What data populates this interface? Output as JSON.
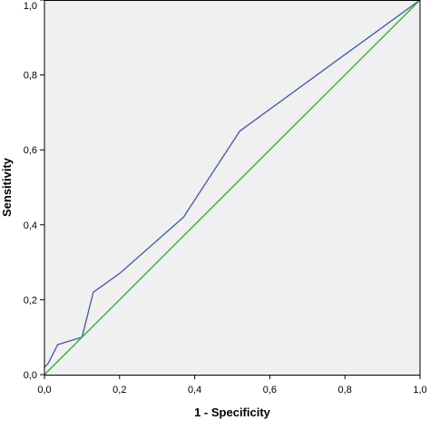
{
  "chart_data": {
    "type": "line",
    "xlabel": "1 - Specificity",
    "ylabel": "Sensitivity",
    "xlim": [
      0,
      1
    ],
    "ylim": [
      0,
      1
    ],
    "x_ticks": [
      "0,0",
      "0,2",
      "0,4",
      "0,6",
      "0,8",
      "1,0"
    ],
    "y_ticks": [
      "0,0",
      "0,2",
      "0,4",
      "0,6",
      "0,8",
      "1,0"
    ],
    "grid": false,
    "background_color": "#f0f0f0",
    "series": [
      {
        "color": "#4a5fa8",
        "x": [
          0,
          0.01,
          0.035,
          0.1,
          0.13,
          0.2,
          0.37,
          0.52,
          1.0
        ],
        "y": [
          0.02,
          0.03,
          0.08,
          0.1,
          0.22,
          0.27,
          0.42,
          0.65,
          1.0
        ]
      },
      {
        "color": "#3aaa3a",
        "x": [
          0,
          1
        ],
        "y": [
          0,
          1
        ]
      }
    ]
  }
}
